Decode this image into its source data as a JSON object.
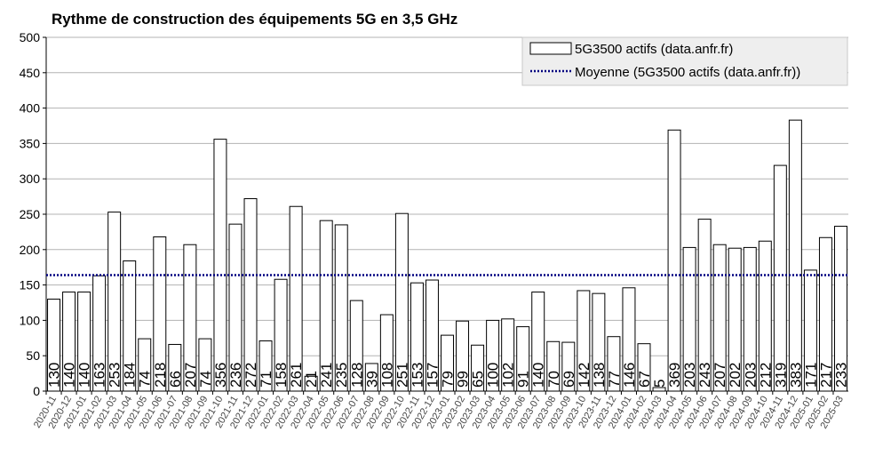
{
  "chart_data": {
    "type": "bar",
    "title": "Rythme de construction des équipements 5G en 3,5 GHz",
    "xlabel": "",
    "ylabel": "",
    "ylim": [
      0,
      500
    ],
    "yticks": [
      0,
      50,
      100,
      150,
      200,
      250,
      300,
      350,
      400,
      450,
      500
    ],
    "grid": true,
    "legend_position": "top-right",
    "categories": [
      "2020-11",
      "2020-12",
      "2021-01",
      "2021-02",
      "2021-03",
      "2021-04",
      "2021-05",
      "2021-06",
      "2021-07",
      "2021-08",
      "2021-09",
      "2021-10",
      "2021-11",
      "2021-12",
      "2022-01",
      "2022-02",
      "2022-03",
      "2022-04",
      "2022-05",
      "2022-06",
      "2022-07",
      "2022-08",
      "2022-09",
      "2022-10",
      "2022-11",
      "2022-12",
      "2023-01",
      "2023-02",
      "2023-03",
      "2023-04",
      "2023-05",
      "2023-06",
      "2023-07",
      "2023-08",
      "2023-09",
      "2023-10",
      "2023-11",
      "2023-12",
      "2024-01",
      "2024-02",
      "2024-03",
      "2024-04",
      "2024-05",
      "2024-06",
      "2024-07",
      "2024-08",
      "2024-09",
      "2024-10",
      "2024-11",
      "2024-12",
      "2025-01",
      "2025-02",
      "2025-03"
    ],
    "series": [
      {
        "name": "5G3500 actifs (data.anfr.fr)",
        "values": [
          130,
          140,
          140,
          163,
          253,
          184,
          74,
          218,
          66,
          207,
          74,
          356,
          236,
          272,
          71,
          158,
          261,
          21,
          241,
          235,
          128,
          39,
          108,
          251,
          153,
          157,
          79,
          99,
          65,
          100,
          102,
          91,
          140,
          70,
          69,
          142,
          138,
          77,
          146,
          67,
          5,
          369,
          203,
          243,
          207,
          202,
          203,
          212,
          319,
          383,
          171,
          217,
          233
        ]
      }
    ],
    "average_line": {
      "name": "Moyenne (5G3500 actifs (data.anfr.fr))",
      "value": 164
    },
    "colors": {
      "bar_fill": "#ffffff",
      "bar_stroke": "#000000",
      "grid": "#b3b3b3",
      "average": "#000080",
      "legend_bg": "#eeeeee",
      "text": "#000000"
    }
  }
}
